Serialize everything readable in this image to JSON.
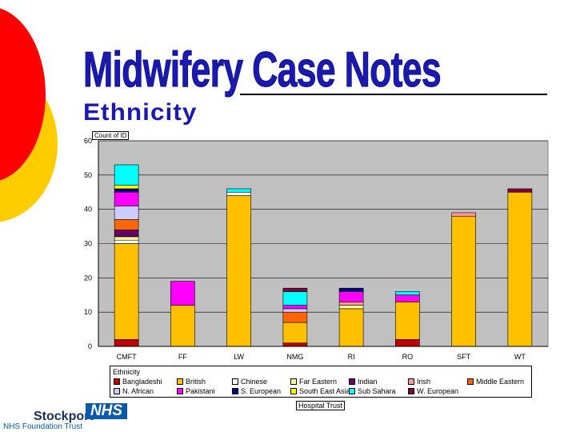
{
  "title": "Midwifery Case Notes",
  "subtitle": "Ethnicity",
  "pivot": {
    "data_field": "Count of ID",
    "page_field": "Hospital Trust"
  },
  "footer": {
    "org": "Stockport",
    "badge": "NHS",
    "trust": "NHS Foundation Trust"
  },
  "colors": {
    "title": "#1a1ab0",
    "plot_bg": "#c0c0c0",
    "deco_red": "#ff0000",
    "deco_yellow": "#ffcc00"
  },
  "chart_data": {
    "type": "bar",
    "stacked": true,
    "categories": [
      "CMFT",
      "FF",
      "LW",
      "NMG",
      "RI",
      "RO",
      "SFT",
      "WT"
    ],
    "ylim": [
      0,
      60
    ],
    "yticks": [
      0,
      10,
      20,
      30,
      40,
      50,
      60
    ],
    "grid": true,
    "legend_title": "Ethnicity",
    "legend_placement": "bottom",
    "series": [
      {
        "name": "Bangladeshi",
        "color": "#c00000",
        "values": [
          2,
          0,
          0,
          1,
          0,
          2,
          0,
          0
        ]
      },
      {
        "name": "British",
        "color": "#ffc000",
        "values": [
          28,
          12,
          44,
          6,
          11,
          11,
          38,
          45
        ]
      },
      {
        "name": "Chinese",
        "color": "#ffffff",
        "values": [
          1,
          0,
          1,
          0,
          0,
          0,
          0,
          0
        ]
      },
      {
        "name": "Far Eastern",
        "color": "#ffff99",
        "values": [
          1,
          0,
          0,
          0,
          1,
          0,
          0,
          0
        ]
      },
      {
        "name": "Indian",
        "color": "#660066",
        "values": [
          2,
          0,
          0,
          0,
          0,
          0,
          0,
          0
        ]
      },
      {
        "name": "Irish",
        "color": "#ff9999",
        "values": [
          0,
          0,
          0,
          0,
          1,
          0,
          1,
          0
        ]
      },
      {
        "name": "Middle Eastern",
        "color": "#ff6600",
        "values": [
          3,
          0,
          0,
          3,
          0,
          0,
          0,
          0
        ]
      },
      {
        "name": "N. African",
        "color": "#ccccff",
        "values": [
          4,
          0,
          0,
          1,
          0,
          0,
          0,
          0
        ]
      },
      {
        "name": "Pakistani",
        "color": "#ff00ff",
        "values": [
          4,
          7,
          0,
          1,
          3,
          2,
          0,
          0
        ]
      },
      {
        "name": "S. European",
        "color": "#000080",
        "values": [
          1,
          0,
          0,
          0,
          1,
          0,
          0,
          0
        ]
      },
      {
        "name": "South East Asian",
        "color": "#ffff00",
        "values": [
          1,
          0,
          0,
          0,
          0,
          0,
          0,
          0
        ]
      },
      {
        "name": "Sub Sahara",
        "color": "#00ffff",
        "values": [
          6,
          0,
          1,
          4,
          0,
          1,
          0,
          0
        ]
      },
      {
        "name": "W. European",
        "color": "#800040",
        "values": [
          0,
          0,
          0,
          1,
          0,
          0,
          0,
          1
        ]
      }
    ]
  }
}
